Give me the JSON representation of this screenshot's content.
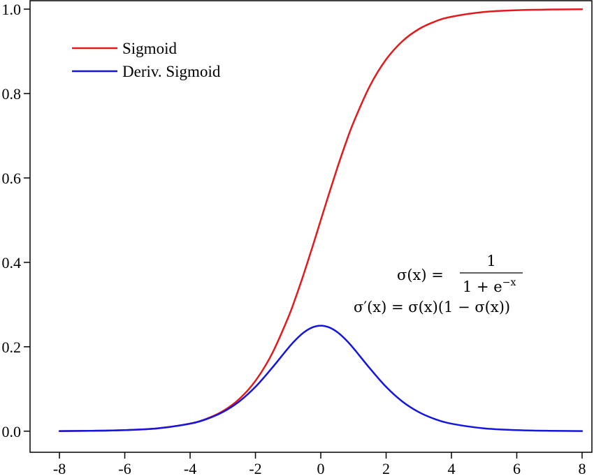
{
  "chart_data": {
    "type": "line",
    "title": "",
    "xlabel": "",
    "ylabel": "",
    "xlim": [
      -8.9,
      8.3
    ],
    "ylim": [
      -0.05,
      1.02
    ],
    "x_ticks": [
      -8,
      -6,
      -4,
      -2,
      0,
      2,
      4,
      6,
      8
    ],
    "x_tick_labels": [
      "-8",
      "-6",
      "-4",
      "-2",
      "0",
      "2",
      "4",
      "6",
      "8"
    ],
    "y_ticks": [
      0.0,
      0.2,
      0.4,
      0.6,
      0.8,
      1.0
    ],
    "y_tick_labels": [
      "0.0",
      "0.2",
      "0.4",
      "0.6",
      "0.8",
      "1.0"
    ],
    "grid": false,
    "legend_position": "top-left",
    "x": [
      -8,
      -7,
      -6,
      -5,
      -4,
      -3.5,
      -3,
      -2.5,
      -2,
      -1.5,
      -1,
      -0.75,
      -0.5,
      -0.25,
      0,
      0.25,
      0.5,
      0.75,
      1,
      1.5,
      2,
      2.5,
      3,
      3.5,
      4,
      5,
      6,
      7,
      8
    ],
    "series": [
      {
        "name": "Sigmoid",
        "color": "#e31a1c",
        "values": [
          0.0003,
          0.0009,
          0.0025,
          0.0067,
          0.018,
          0.0293,
          0.0474,
          0.0759,
          0.1192,
          0.1824,
          0.2689,
          0.3208,
          0.3775,
          0.4378,
          0.5,
          0.5622,
          0.6225,
          0.6792,
          0.7311,
          0.8176,
          0.8808,
          0.9241,
          0.9526,
          0.9707,
          0.982,
          0.9933,
          0.9975,
          0.9991,
          0.9997
        ]
      },
      {
        "name": "Deriv. Sigmoid",
        "color": "#1515e0",
        "values": [
          0.0003,
          0.0009,
          0.0025,
          0.0066,
          0.0177,
          0.0285,
          0.0452,
          0.0701,
          0.105,
          0.1491,
          0.1966,
          0.2179,
          0.235,
          0.2461,
          0.25,
          0.2461,
          0.235,
          0.2179,
          0.1966,
          0.1491,
          0.105,
          0.0701,
          0.0452,
          0.0285,
          0.0177,
          0.0066,
          0.0025,
          0.0009,
          0.0003
        ]
      }
    ],
    "annotations": {
      "formula1_lhs": "σ(x) =",
      "formula1_num": "1",
      "formula1_den": "1 + e",
      "formula1_den_exp": "−x",
      "formula2": "σ′(x) = σ(x)(1 − σ(x))"
    }
  }
}
